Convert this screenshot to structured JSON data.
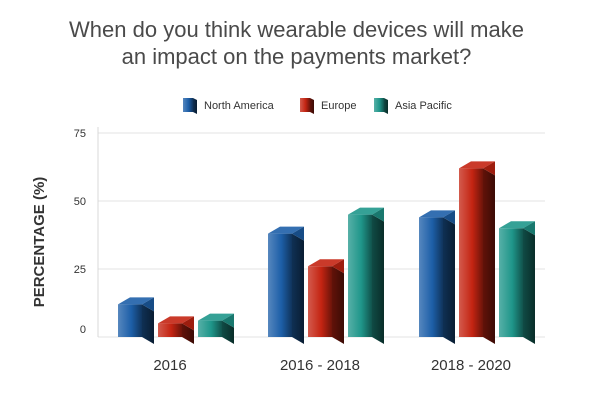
{
  "chart_data": {
    "type": "bar",
    "title_lines": [
      "When do you think wearable devices will make",
      "an impact on the payments market?"
    ],
    "ylabel": "PERCENTAGE (%)",
    "xlabel": "",
    "ylim": [
      0,
      75
    ],
    "yticks": [
      0,
      25,
      50,
      75
    ],
    "grid": true,
    "legend_position": "top",
    "categories": [
      "2016",
      "2016 - 2018",
      "2018 - 2020"
    ],
    "series": [
      {
        "name": "North America",
        "values": [
          12,
          38,
          44
        ],
        "color": "#1d5fa8"
      },
      {
        "name": "Europe",
        "values": [
          5,
          26,
          62
        ],
        "color": "#c42412"
      },
      {
        "name": "Asia Pacific",
        "values": [
          6,
          45,
          40
        ],
        "color": "#1f968a"
      }
    ]
  }
}
